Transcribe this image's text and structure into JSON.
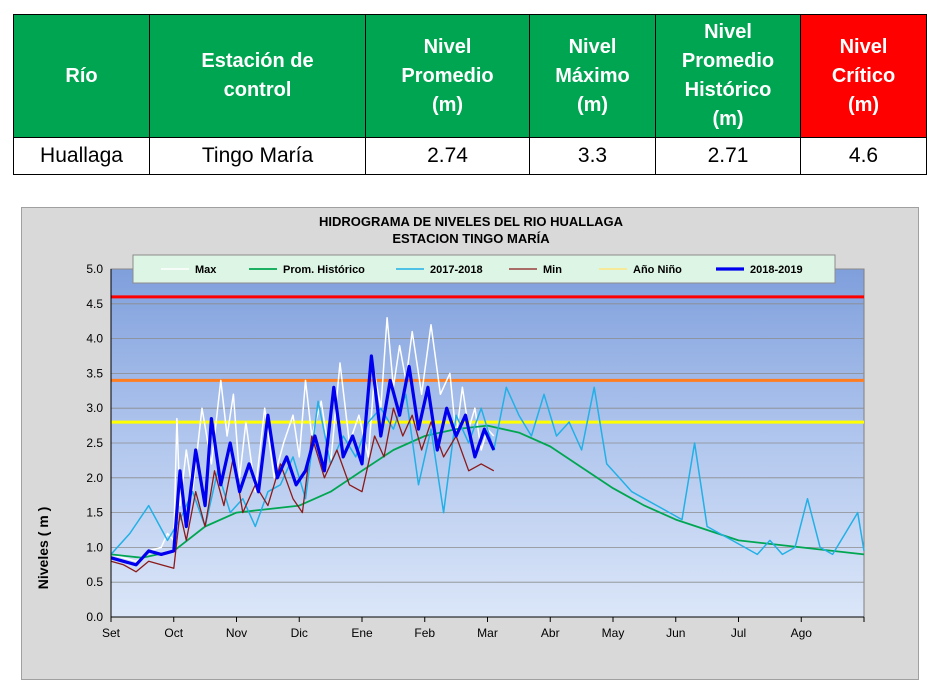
{
  "table": {
    "headers": [
      "Río",
      "Estación de\ncontrol",
      "Nivel\nPromedio\n(m)",
      "Nivel\nMáximo\n(m)",
      "Nivel\nPromedio\nHistórico\n(m)",
      "Nivel\nCrítico\n(m)"
    ],
    "row": [
      "Huallaga",
      "Tingo María",
      "2.74",
      "3.3",
      "2.71",
      "4.6"
    ]
  },
  "colors": {
    "header_green": "#00a551",
    "header_red": "#ff0000",
    "max": "#ffffff",
    "prom_hist": "#00a651",
    "y2017": "#22b0e6",
    "min": "#8b1a1a",
    "nino": "#ffe680",
    "y2018": "#0000ee",
    "critical_line": "#ff0000",
    "orange_line": "#ff7c1f",
    "yellow_line": "#ffff00"
  },
  "chart_data": {
    "type": "line",
    "title": "HIDROGRAMA DE NIVELES DEL RIO HUALLAGA",
    "subtitle": "ESTACION TINGO MARÍA",
    "ylabel": "Niveles ( m )",
    "xlabel": "",
    "ylim": [
      0,
      5
    ],
    "y_ticks": [
      "0.0",
      "0.5",
      "1.0",
      "1.5",
      "2.0",
      "2.5",
      "3.0",
      "3.5",
      "4.0",
      "4.5",
      "5.0"
    ],
    "x_ticks": [
      "Set",
      "Oct",
      "Nov",
      "Dic",
      "Ene",
      "Feb",
      "Mar",
      "Abr",
      "May",
      "Jun",
      "Jul",
      "Ago"
    ],
    "legend_position": "top",
    "grid": true,
    "thresholds": [
      {
        "value": 4.6,
        "color": "#ff0000"
      },
      {
        "value": 3.4,
        "color": "#ff7c1f"
      },
      {
        "value": 2.8,
        "color": "#ffff00"
      }
    ],
    "series": [
      {
        "name": "Max",
        "color": "#ffffff",
        "width": 1.5,
        "x": [
          0,
          0.2,
          0.4,
          0.6,
          0.8,
          0.9,
          1.0,
          1.05,
          1.1,
          1.2,
          1.3,
          1.45,
          1.6,
          1.75,
          1.85,
          1.95,
          2.05,
          2.15,
          2.3,
          2.45,
          2.6,
          2.75,
          2.9,
          3.0,
          3.1,
          3.2,
          3.35,
          3.5,
          3.65,
          3.8,
          3.95,
          4.1,
          4.2,
          4.3,
          4.4,
          4.5,
          4.6,
          4.7,
          4.8,
          4.95,
          5.1,
          5.25,
          5.4,
          5.5,
          5.6,
          5.7,
          5.8,
          5.9,
          6.0,
          6.1
        ],
        "y": [
          0.9,
          0.85,
          0.8,
          0.95,
          1.0,
          1.2,
          1.1,
          2.85,
          1.6,
          2.4,
          1.8,
          3.0,
          2.2,
          3.4,
          2.6,
          3.2,
          2.0,
          2.8,
          1.8,
          3.0,
          2.0,
          2.5,
          2.9,
          2.3,
          3.4,
          2.6,
          3.1,
          2.2,
          3.65,
          2.5,
          2.9,
          2.3,
          3.5,
          3.0,
          4.3,
          3.3,
          3.9,
          3.4,
          4.1,
          3.2,
          4.2,
          3.2,
          3.5,
          2.6,
          3.3,
          2.7,
          3.0,
          2.4,
          2.7,
          2.6
        ]
      },
      {
        "name": "Prom. Histórico",
        "color": "#00a651",
        "width": 1.8,
        "x": [
          0,
          0.5,
          1.0,
          1.5,
          2.0,
          2.5,
          3.0,
          3.5,
          4.0,
          4.5,
          5.0,
          5.5,
          6.0,
          6.5,
          7.0,
          7.5,
          8.0,
          8.5,
          9.0,
          9.5,
          10.0,
          10.5,
          11.0,
          11.5,
          12.0
        ],
        "y": [
          0.9,
          0.85,
          0.95,
          1.3,
          1.5,
          1.55,
          1.6,
          1.8,
          2.1,
          2.4,
          2.6,
          2.7,
          2.75,
          2.65,
          2.45,
          2.15,
          1.85,
          1.6,
          1.4,
          1.25,
          1.1,
          1.05,
          1.0,
          0.95,
          0.9
        ]
      },
      {
        "name": "2017-2018",
        "color": "#22b0e6",
        "width": 1.5,
        "x": [
          0,
          0.3,
          0.6,
          0.9,
          1.1,
          1.3,
          1.5,
          1.7,
          1.9,
          2.1,
          2.3,
          2.5,
          2.7,
          2.9,
          3.1,
          3.3,
          3.5,
          3.7,
          3.9,
          4.1,
          4.3,
          4.5,
          4.7,
          4.9,
          5.1,
          5.3,
          5.5,
          5.7,
          5.9,
          6.1,
          6.3,
          6.5,
          6.7,
          6.9,
          7.1,
          7.3,
          7.5,
          7.7,
          7.9,
          8.1,
          8.3,
          8.5,
          8.7,
          8.9,
          9.1,
          9.3,
          9.5,
          9.7,
          9.9,
          10.1,
          10.3,
          10.5,
          10.7,
          10.9,
          11.1,
          11.3,
          11.5,
          11.7,
          11.9,
          12.0
        ],
        "y": [
          0.9,
          1.2,
          1.6,
          1.1,
          1.4,
          1.8,
          1.3,
          2.1,
          1.5,
          1.7,
          1.3,
          1.8,
          1.9,
          2.3,
          1.7,
          3.1,
          2.2,
          2.6,
          2.3,
          2.8,
          3.0,
          2.7,
          3.2,
          1.9,
          2.7,
          1.5,
          2.9,
          2.5,
          3.0,
          2.4,
          3.3,
          2.9,
          2.6,
          3.2,
          2.6,
          2.8,
          2.4,
          3.3,
          2.2,
          2.0,
          1.8,
          1.7,
          1.6,
          1.5,
          1.4,
          2.5,
          1.3,
          1.2,
          1.1,
          1.0,
          0.9,
          1.1,
          0.9,
          1.0,
          1.7,
          1.0,
          0.9,
          1.2,
          1.5,
          0.95
        ]
      },
      {
        "name": "Min",
        "color": "#8b1a1a",
        "width": 1.3,
        "x": [
          0,
          0.2,
          0.4,
          0.6,
          0.8,
          1.0,
          1.1,
          1.2,
          1.35,
          1.5,
          1.65,
          1.8,
          1.95,
          2.1,
          2.3,
          2.5,
          2.7,
          2.9,
          3.05,
          3.2,
          3.4,
          3.6,
          3.8,
          4.0,
          4.2,
          4.35,
          4.5,
          4.65,
          4.8,
          4.95,
          5.1,
          5.3,
          5.5,
          5.7,
          5.9,
          6.1
        ],
        "y": [
          0.8,
          0.75,
          0.65,
          0.8,
          0.75,
          0.7,
          1.5,
          1.1,
          1.8,
          1.3,
          2.1,
          1.6,
          2.3,
          1.5,
          1.9,
          1.6,
          2.2,
          1.7,
          1.5,
          2.6,
          2.0,
          2.4,
          1.9,
          1.8,
          2.6,
          2.3,
          3.0,
          2.6,
          2.9,
          2.4,
          2.8,
          2.3,
          2.6,
          2.1,
          2.2,
          2.1
        ]
      },
      {
        "name": "Año Niño",
        "color": "#ffe680",
        "width": 1.5,
        "x": [],
        "y": []
      },
      {
        "name": "2018-2019",
        "color": "#0000ee",
        "width": 3.2,
        "x": [
          0,
          0.2,
          0.4,
          0.6,
          0.8,
          1.0,
          1.1,
          1.2,
          1.35,
          1.5,
          1.6,
          1.75,
          1.9,
          2.05,
          2.2,
          2.35,
          2.5,
          2.65,
          2.8,
          2.95,
          3.1,
          3.25,
          3.4,
          3.55,
          3.7,
          3.85,
          4.0,
          4.15,
          4.3,
          4.45,
          4.6,
          4.75,
          4.9,
          5.05,
          5.2,
          5.35,
          5.5,
          5.65,
          5.8,
          5.95,
          6.1
        ],
        "y": [
          0.85,
          0.8,
          0.75,
          0.95,
          0.9,
          0.95,
          2.1,
          1.3,
          2.4,
          1.6,
          2.85,
          1.9,
          2.5,
          1.8,
          2.2,
          1.8,
          2.9,
          2.0,
          2.3,
          1.9,
          2.1,
          2.6,
          2.1,
          3.3,
          2.3,
          2.6,
          2.2,
          3.75,
          2.6,
          3.4,
          2.9,
          3.6,
          2.7,
          3.3,
          2.4,
          3.0,
          2.6,
          2.9,
          2.3,
          2.7,
          2.4
        ]
      }
    ]
  }
}
